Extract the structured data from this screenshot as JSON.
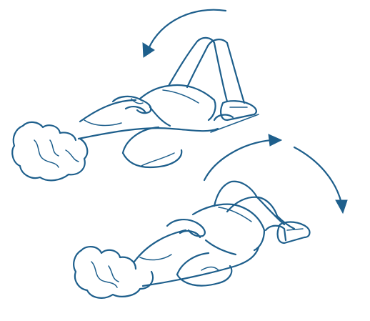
{
  "illustration": {
    "line_color": "#1e5f8c",
    "background_color": "#ffffff",
    "figures": [
      {
        "pose": "lying-on-back-knees-bent-tilted-left",
        "rotation_arrow": "counterclockwise"
      },
      {
        "pose": "lying-on-back-knees-bent-tilted-right",
        "rotation_arrow": "clockwise"
      }
    ]
  }
}
